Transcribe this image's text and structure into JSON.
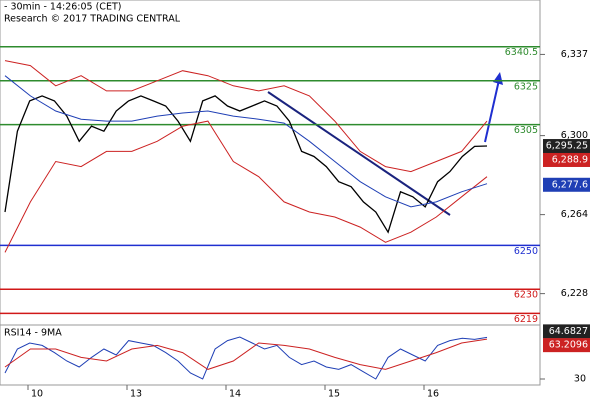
{
  "chart_data": {
    "type": "line",
    "header": " - 30min - 14:26:05 (CET)",
    "source": "Research © 2017 TRADING CENTRAL",
    "ylim": [
      6213.7,
      6361.8
    ],
    "yticks": [
      {
        "value": 6337,
        "label": "6,337"
      },
      {
        "value": 6300,
        "label": "6,300"
      },
      {
        "value": 6264,
        "label": "6,264"
      },
      {
        "value": 6228,
        "label": "6,228"
      }
    ],
    "date_labels": [
      "10",
      "13",
      "14",
      "15",
      "16"
    ],
    "levels": [
      {
        "value": 6340.5,
        "color": "#2e8b2e"
      },
      {
        "value": 6325,
        "color": "#2e8b2e"
      },
      {
        "value": 6305,
        "color": "#2e8b2e"
      },
      {
        "value": 6250,
        "color": "#1f2fd0"
      },
      {
        "value": 6230,
        "color": "#d01818"
      },
      {
        "value": 6219,
        "color": "#d01818"
      }
    ],
    "series": [
      {
        "name": "Price",
        "color": "#000000",
        "values": [
          6265.2,
          6302,
          6315.8,
          6318.1,
          6315.8,
          6308.9,
          6297.4,
          6304.3,
          6302,
          6311.2,
          6315.8,
          6318.1,
          6315.8,
          6313.5,
          6306.6,
          6297.4,
          6315.8,
          6318.1,
          6313.5,
          6311.2,
          6313.5,
          6315.8,
          6313.5,
          6306.6,
          6292.8,
          6290.5,
          6285.9,
          6279,
          6276.7,
          6269.8,
          6265.2,
          6256,
          6274.4,
          6272.1,
          6267.5,
          6279,
          6283.6,
          6290.5,
          6295.1,
          6295.25
        ]
      },
      {
        "name": "Upper band",
        "color": "#cc2222",
        "values": [
          6334.2,
          6331.9,
          6322.7,
          6327.3,
          6320.4,
          6320.4,
          6325,
          6329.6,
          6327.3,
          6322.7,
          6320.4,
          6322.7,
          6318.1,
          6306.6,
          6292.8,
          6285.9,
          6283.6,
          6288.2,
          6292.8,
          6306.6
        ]
      },
      {
        "name": "Lower band",
        "color": "#cc2222",
        "values": [
          6246.8,
          6269.8,
          6288.2,
          6285.9,
          6292.8,
          6292.8,
          6297.4,
          6304.3,
          6306.6,
          6288.2,
          6281.3,
          6269.8,
          6265.2,
          6262.9,
          6258.3,
          6251.4,
          6256,
          6262.9,
          6272.1,
          6281.3
        ]
      },
      {
        "name": "Moving average",
        "color": "#1f3fb5",
        "values": [
          6327.3,
          6318.1,
          6311.2,
          6307.5,
          6306.6,
          6306.6,
          6308.9,
          6310.3,
          6311.2,
          6308.9,
          6307.5,
          6305.7,
          6297.4,
          6288.2,
          6279,
          6272.1,
          6267.5,
          6269.8,
          6274.4,
          6278.1
        ]
      }
    ],
    "price_boxes": [
      {
        "value": 6295.25,
        "label": "6,295.25",
        "color": "#222222"
      },
      {
        "value": 6288.9,
        "label": "6,288.9",
        "color": "#cc2222"
      },
      {
        "value": 6277.6,
        "label": "6,277.6",
        "color": "#1f3fb5"
      }
    ],
    "rsi": {
      "title": "RSI14 - 9MA",
      "ylim": [
        25,
        75
      ],
      "yticks": [
        30
      ],
      "series": [
        {
          "color": "#1f3fb5",
          "values": [
            35,
            55,
            60,
            58,
            52,
            45,
            40,
            48,
            55,
            50,
            62,
            60,
            58,
            52,
            45,
            35,
            30,
            55,
            62,
            65,
            60,
            55,
            58,
            48,
            42,
            45,
            40,
            38,
            42,
            36,
            30,
            48,
            55,
            50,
            45,
            58,
            62,
            64,
            63,
            64.6827
          ]
        },
        {
          "color": "#cc2222",
          "values": [
            40,
            55,
            55,
            48,
            45,
            55,
            58,
            52,
            38,
            45,
            60,
            58,
            55,
            48,
            42,
            38,
            45,
            52,
            60,
            63.2096
          ]
        }
      ],
      "boxes": [
        {
          "value": 64.6827,
          "color": "#222222"
        },
        {
          "value": 63.2096,
          "color": "#cc2222"
        }
      ]
    }
  }
}
